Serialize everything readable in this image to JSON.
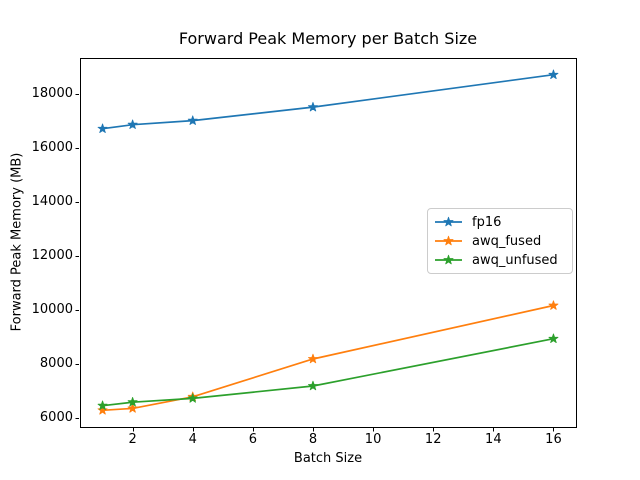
{
  "figure": {
    "kind": "matplotlib-line-chart"
  },
  "chart_data": {
    "type": "line",
    "title": "Forward Peak Memory per Batch Size",
    "xlabel": "Batch Size",
    "ylabel": "Forward Peak Memory (MB)",
    "x": [
      1,
      2,
      4,
      8,
      16
    ],
    "series": [
      {
        "name": "fp16",
        "color": "#1f77b4",
        "marker": "star",
        "values": [
          16720,
          16870,
          17020,
          17520,
          18720
        ]
      },
      {
        "name": "awq_fused",
        "color": "#ff7f0e",
        "marker": "star",
        "values": [
          6290,
          6360,
          6790,
          8190,
          10170
        ]
      },
      {
        "name": "awq_unfused",
        "color": "#2ca02c",
        "marker": "star",
        "values": [
          6460,
          6590,
          6730,
          7190,
          8940
        ]
      }
    ],
    "xticks": [
      2,
      4,
      6,
      8,
      10,
      12,
      14,
      16
    ],
    "yticks": [
      6000,
      8000,
      10000,
      12000,
      14000,
      16000,
      18000
    ],
    "xlim": [
      0.25,
      16.75
    ],
    "ylim": [
      5670,
      19340
    ],
    "grid": false,
    "legend": {
      "position": "center right",
      "entries": [
        "fp16",
        "awq_fused",
        "awq_unfused"
      ]
    }
  }
}
